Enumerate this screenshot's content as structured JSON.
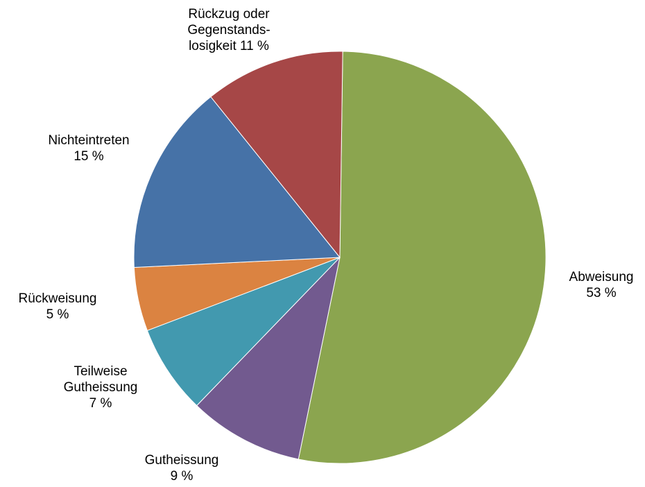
{
  "chart_data": {
    "type": "pie",
    "start_angle_deg": 0.8,
    "direction": "clockwise",
    "slices": [
      {
        "label_lines": [
          "Abweisung",
          "53 %"
        ],
        "value": 53,
        "color": "#8BA54F"
      },
      {
        "label_lines": [
          "Gutheissung",
          "9 %"
        ],
        "value": 9,
        "color": "#725A8F"
      },
      {
        "label_lines": [
          "Teilweise",
          "Gutheissung",
          "7 %"
        ],
        "value": 7,
        "color": "#4299AF"
      },
      {
        "label_lines": [
          "Rückweisung",
          "5 %"
        ],
        "value": 5,
        "color": "#DB8341"
      },
      {
        "label_lines": [
          "Nichteintreten",
          "15 %"
        ],
        "value": 15,
        "color": "#4672A7"
      },
      {
        "label_lines": [
          "Rückzug oder",
          "Gegenstands-",
          "losigkeit 11 %"
        ],
        "value": 11,
        "color": "#A64747"
      }
    ]
  }
}
